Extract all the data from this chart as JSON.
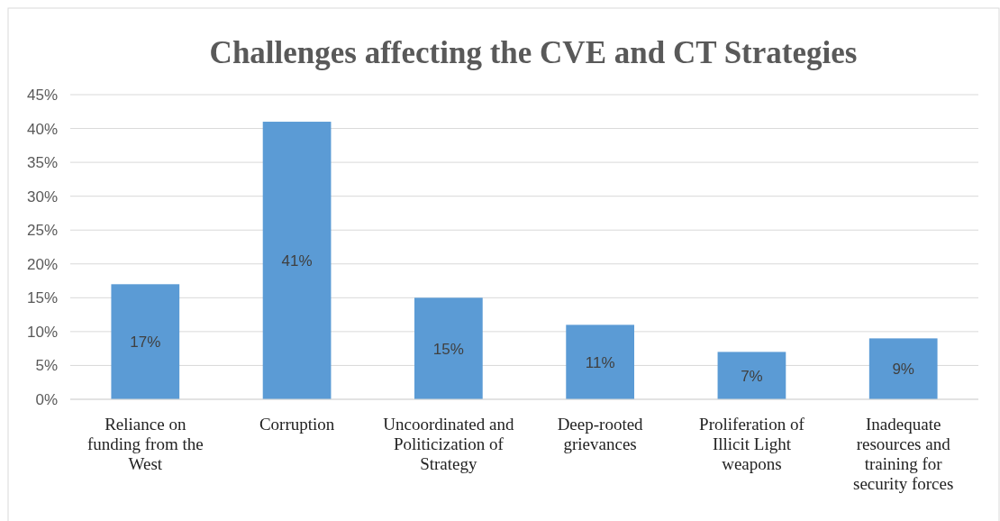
{
  "chart_data": {
    "type": "bar",
    "title": "Challenges affecting the CVE and CT Strategies",
    "categories": [
      "Reliance on funding from the West",
      "Corruption",
      "Uncoordinated and Politicization of Strategy",
      "Deep-rooted grievances",
      "Proliferation of Illicit Light weapons",
      "Inadequate resources and training for security forces"
    ],
    "values": [
      17,
      41,
      15,
      11,
      7,
      9
    ],
    "value_labels": [
      "17%",
      "41%",
      "15%",
      "11%",
      "7%",
      "9%"
    ],
    "color": "#5b9bd5",
    "ylim": [
      0,
      45
    ],
    "yticks": [
      {
        "value": 0,
        "label": "0%"
      },
      {
        "value": 5,
        "label": "5%"
      },
      {
        "value": 10,
        "label": "10%"
      },
      {
        "value": 15,
        "label": "15%"
      },
      {
        "value": 20,
        "label": "20%"
      },
      {
        "value": 25,
        "label": "25%"
      },
      {
        "value": 30,
        "label": "30%"
      },
      {
        "value": 35,
        "label": "35%"
      },
      {
        "value": 40,
        "label": "40%"
      },
      {
        "value": 45,
        "label": "45%"
      }
    ],
    "grid": "y"
  }
}
